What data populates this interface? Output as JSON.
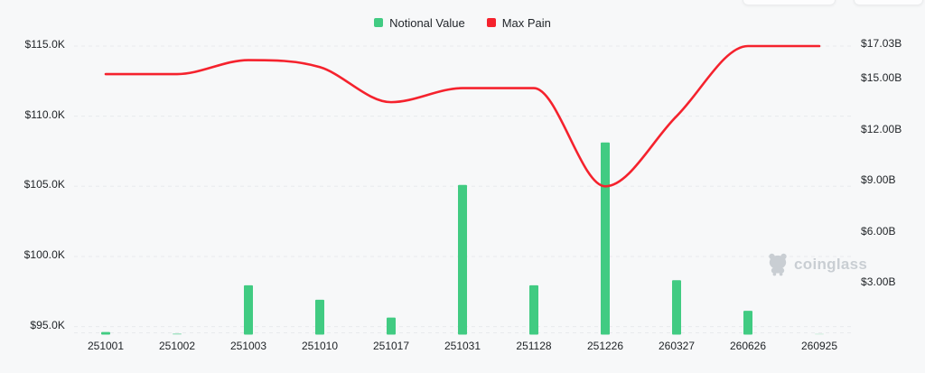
{
  "page": {
    "background": "#f7f8f9"
  },
  "header": {
    "partial_buttons": [
      {
        "name": "partial-button-left"
      },
      {
        "name": "partial-button-right"
      }
    ]
  },
  "legend": {
    "items": [
      {
        "label": "Notional Value",
        "color": "#41cb82"
      },
      {
        "label": "Max Pain",
        "color": "#f5222d"
      }
    ]
  },
  "watermark": {
    "text": "coinglass"
  },
  "chart_data": {
    "type": "combo",
    "categories": [
      "251001",
      "251002",
      "251003",
      "251010",
      "251017",
      "251031",
      "251128",
      "251226",
      "260327",
      "260626",
      "260925"
    ],
    "series": [
      {
        "name": "Notional Value",
        "type": "bar",
        "axis": "right",
        "unit": "billion USD",
        "values": [
          0.15,
          0.08,
          2.9,
          2.05,
          1.0,
          8.8,
          2.9,
          11.3,
          3.2,
          1.4,
          0.05
        ],
        "colors": [
          "#41cb82",
          "#a9e3c6",
          "#41cb82",
          "#41cb82",
          "#41cb82",
          "#41cb82",
          "#41cb82",
          "#41cb82",
          "#41cb82",
          "#41cb82",
          "#d7f0e2"
        ]
      },
      {
        "name": "Max Pain",
        "type": "line",
        "axis": "left",
        "unit": "USD",
        "color": "#f5222d",
        "values": [
          113000,
          113000,
          114000,
          113500,
          111000,
          112000,
          112000,
          105000,
          110000,
          115000,
          115000
        ]
      }
    ],
    "left_axis": {
      "tick_labels": [
        "$115.0K",
        "$110.0K",
        "$105.0K",
        "$100.0K",
        "$95.0K"
      ],
      "tick_values": [
        115000,
        110000,
        105000,
        100000,
        95000
      ]
    },
    "right_axis": {
      "tick_labels": [
        "$17.03B",
        "$15.00B",
        "$12.00B",
        "$9.00B",
        "$6.00B",
        "$3.00B"
      ],
      "tick_values": [
        17.03,
        15,
        12,
        9,
        6,
        3
      ]
    },
    "grid": "horizontal-dashed",
    "legend_position": "top-center"
  }
}
